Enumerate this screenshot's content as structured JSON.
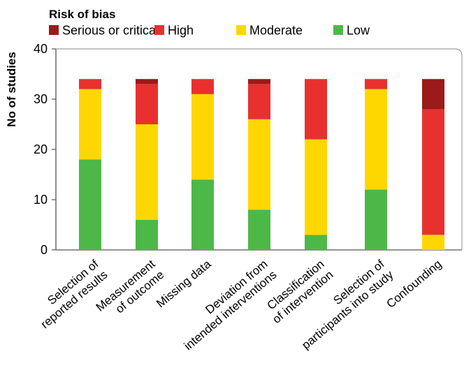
{
  "chart_data": {
    "type": "bar",
    "stacked": true,
    "legend_title": "Risk of bias",
    "legend_position": "top-left",
    "ylabel": "No of studies",
    "xlabel": "",
    "ylim": [
      0,
      40
    ],
    "yticks": [
      0,
      10,
      20,
      30,
      40
    ],
    "grid": false,
    "categories": [
      [
        "Selection of",
        "reported results"
      ],
      [
        "Measurement",
        "of outcome"
      ],
      [
        "Missing data"
      ],
      [
        "Deviation from",
        "intended interventions"
      ],
      [
        "Classification",
        "of intervention"
      ],
      [
        "Selection of",
        "participants into study"
      ],
      [
        "Confounding"
      ]
    ],
    "series": [
      {
        "name": "Low",
        "color": "#4db848",
        "values": [
          18,
          6,
          14,
          8,
          3,
          12,
          0
        ]
      },
      {
        "name": "Moderate",
        "color": "#ffd700",
        "values": [
          14,
          19,
          17,
          18,
          19,
          20,
          3
        ]
      },
      {
        "name": "High",
        "color": "#e8312f",
        "values": [
          2,
          8,
          3,
          7,
          12,
          2,
          25
        ]
      },
      {
        "name": "Serious or critical",
        "color": "#9b1a1a",
        "values": [
          0,
          1,
          0,
          1,
          0,
          0,
          6
        ]
      }
    ],
    "legend_order": [
      "Serious or critical",
      "High",
      "Moderate",
      "Low"
    ]
  }
}
